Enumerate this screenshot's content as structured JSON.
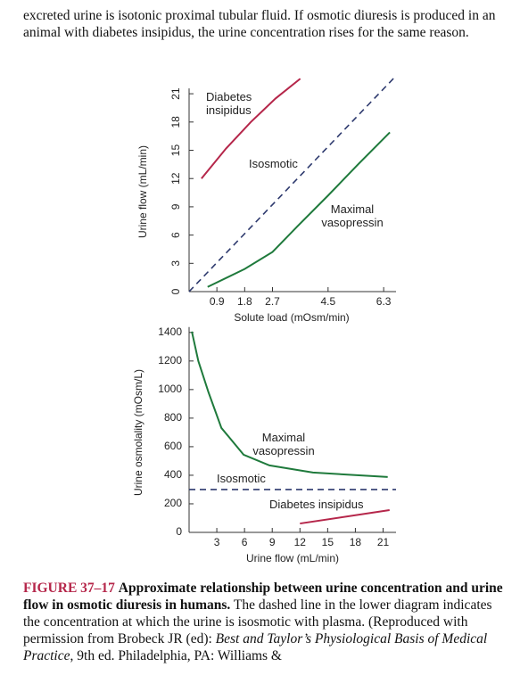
{
  "paragraph": "excreted urine is isotonic proximal tubular fluid. If osmotic diuresis is produced in an animal with diabetes insipidus, the urine concentration rises for the same reason.",
  "chart_data": [
    {
      "type": "line",
      "ylabel": "Urine flow (mL/min)",
      "xlabel": "Solute load (mOsm/min)",
      "xlim": [
        0,
        6.7
      ],
      "ylim": [
        0,
        23
      ],
      "xticks": [
        0.9,
        1.8,
        2.7,
        4.5,
        6.3
      ],
      "yticks": [
        0,
        3,
        6,
        9,
        12,
        15,
        18,
        21
      ],
      "series": [
        {
          "name": "Diabetes insipidus",
          "color": "#b5264a",
          "style": "solid",
          "x": [
            0.4,
            1.2,
            2.0,
            2.8,
            3.6
          ],
          "values": [
            12,
            15.2,
            18,
            20.5,
            22.6
          ]
        },
        {
          "name": "Isosmotic",
          "color": "#2e3a6e",
          "style": "dashed",
          "x": [
            0,
            6.7
          ],
          "values": [
            0,
            22.9
          ]
        },
        {
          "name": "Maximal vasopressin",
          "color": "#1f7a3c",
          "style": "solid",
          "x": [
            0.6,
            1.8,
            2.7,
            3.5,
            4.5,
            5.5,
            6.5
          ],
          "values": [
            0.5,
            2.4,
            4.2,
            6.9,
            10.2,
            13.6,
            16.9
          ]
        }
      ]
    },
    {
      "type": "line",
      "ylabel": "Urine osmolality (mOsm/L)",
      "xlabel": "Urine flow (mL/min)",
      "xlim": [
        0,
        22.4
      ],
      "ylim": [
        0,
        1430
      ],
      "xticks": [
        3,
        6,
        9,
        12,
        15,
        18,
        21
      ],
      "yticks": [
        0,
        200,
        400,
        600,
        800,
        1000,
        1200,
        1400
      ],
      "series": [
        {
          "name": "Maximal vasopressin",
          "color": "#1f7a3c",
          "style": "solid",
          "x": [
            0.3,
            1.0,
            2.1,
            3.5,
            5.9,
            8.7,
            13.4,
            21.5
          ],
          "values": [
            1406,
            1200,
            981,
            731,
            544,
            469,
            419,
            388
          ]
        },
        {
          "name": "Isosmotic",
          "color": "#2e3a6e",
          "style": "dashed",
          "x": [
            0,
            22.4
          ],
          "values": [
            300,
            300
          ]
        },
        {
          "name": "Diabetes insipidus",
          "color": "#b5264a",
          "style": "solid",
          "x": [
            12,
            21.7
          ],
          "values": [
            62,
            156
          ]
        }
      ]
    }
  ],
  "caption": {
    "label": "FIGURE 37–17",
    "title": "Approximate relationship between urine concentration and urine flow in osmotic diuresis in humans.",
    "text": "The dashed line in the lower diagram indicates the concentration at which the urine is isosmotic with plasma. (Reproduced with permission from Brobeck JR (ed):",
    "book": "Best and Taylor’s Physiological Basis of Medical Practice",
    "rest": ", 9th ed. Philadelphia, PA: Williams &"
  }
}
